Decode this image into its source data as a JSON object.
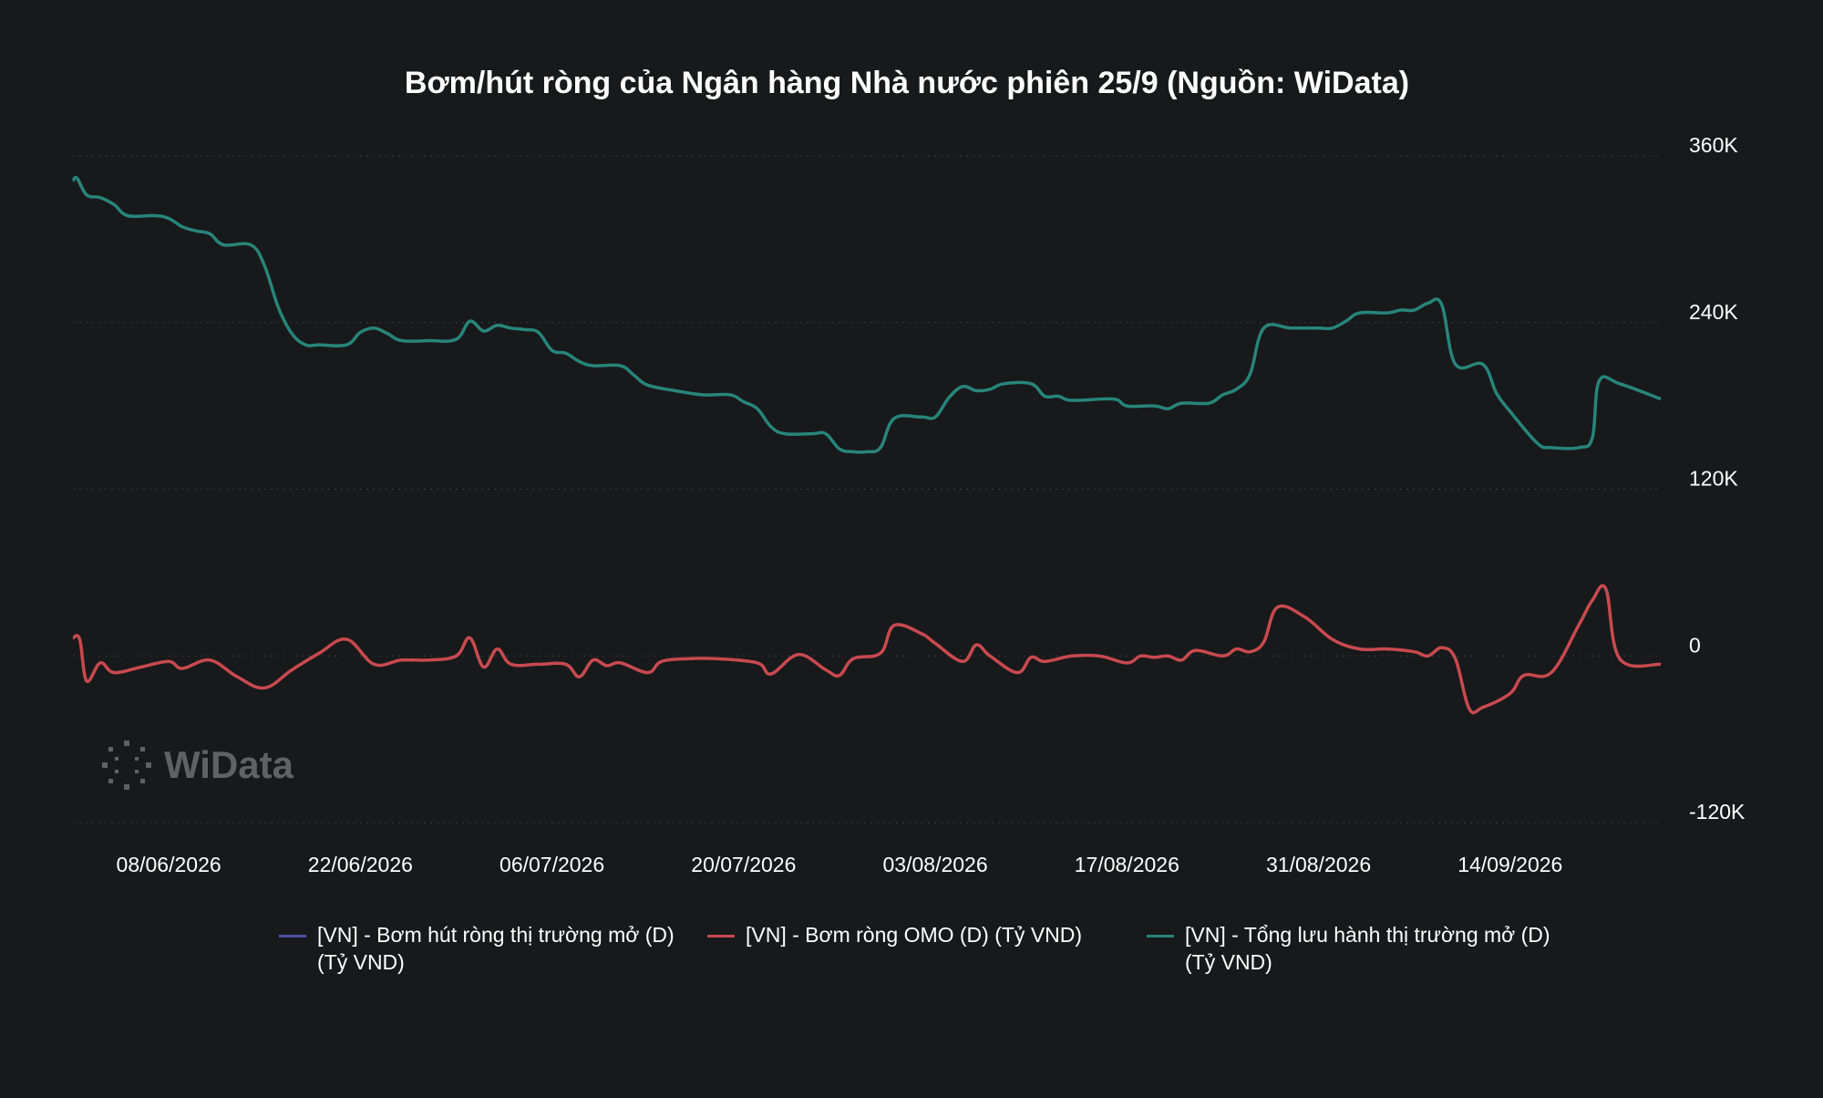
{
  "chart_data": {
    "type": "line",
    "title": "Bơm/hút ròng của Ngân hàng Nhà nước phiên 25/9 (Nguồn: WiData)",
    "x_ticks": [
      "08/06/2026",
      "22/06/2026",
      "06/07/2026",
      "20/07/2026",
      "03/08/2026",
      "17/08/2026",
      "31/08/2026",
      "14/09/2026"
    ],
    "y_ticks": [
      "360K",
      "240K",
      "120K",
      "0",
      "-120K"
    ],
    "y_tick_values": [
      360000,
      240000,
      120000,
      0,
      -120000
    ],
    "ylim": [
      -120000,
      360000
    ],
    "xlim_days": [
      0,
      116
    ],
    "x_tick_days": [
      7,
      21,
      35,
      49,
      63,
      77,
      91,
      105
    ],
    "grid": true,
    "legend_position": "bottom",
    "series": [
      {
        "name": "[VN] - Bơm hút ròng thị trường mở (D) (Tỷ VND)",
        "color": "#4c4ea3",
        "values": []
      },
      {
        "name": "[VN] - Bơm ròng OMO (D) (Tỷ VND)",
        "color": "#c84a4f",
        "points": [
          [
            0,
            13000
          ],
          [
            0.5,
            12000
          ],
          [
            1,
            -18000
          ],
          [
            2,
            -5000
          ],
          [
            3,
            -12000
          ],
          [
            5,
            -8000
          ],
          [
            7,
            -4000
          ],
          [
            8,
            -9000
          ],
          [
            10,
            -3000
          ],
          [
            12,
            -15000
          ],
          [
            14,
            -23000
          ],
          [
            16,
            -10000
          ],
          [
            18,
            2000
          ],
          [
            20,
            12000
          ],
          [
            22,
            -6000
          ],
          [
            24,
            -3000
          ],
          [
            26,
            -3000
          ],
          [
            28,
            0
          ],
          [
            29,
            13000
          ],
          [
            30,
            -8000
          ],
          [
            31,
            5000
          ],
          [
            32,
            -6000
          ],
          [
            34,
            -6000
          ],
          [
            36,
            -6000
          ],
          [
            37,
            -15000
          ],
          [
            38,
            -3000
          ],
          [
            39,
            -7000
          ],
          [
            40,
            -5000
          ],
          [
            42,
            -12000
          ],
          [
            43,
            -4000
          ],
          [
            45,
            -2000
          ],
          [
            47,
            -2000
          ],
          [
            50,
            -5000
          ],
          [
            51,
            -13000
          ],
          [
            53,
            1000
          ],
          [
            55,
            -10000
          ],
          [
            56,
            -14000
          ],
          [
            57,
            -2000
          ],
          [
            59,
            2000
          ],
          [
            60,
            22000
          ],
          [
            62,
            16000
          ],
          [
            63,
            9000
          ],
          [
            65,
            -4000
          ],
          [
            66,
            8000
          ],
          [
            67,
            0
          ],
          [
            69,
            -12000
          ],
          [
            70,
            -1000
          ],
          [
            71,
            -4000
          ],
          [
            73,
            0
          ],
          [
            75,
            0
          ],
          [
            77,
            -5000
          ],
          [
            78,
            0
          ],
          [
            79,
            -1000
          ],
          [
            80,
            0
          ],
          [
            81,
            -3000
          ],
          [
            82,
            4000
          ],
          [
            84,
            0
          ],
          [
            85,
            5000
          ],
          [
            86,
            3000
          ],
          [
            87,
            10000
          ],
          [
            88,
            35000
          ],
          [
            90,
            28000
          ],
          [
            92,
            12000
          ],
          [
            94,
            5000
          ],
          [
            96,
            5000
          ],
          [
            98,
            3000
          ],
          [
            99,
            0
          ],
          [
            100,
            6000
          ],
          [
            101,
            -2000
          ],
          [
            102,
            -38000
          ],
          [
            103,
            -37000
          ],
          [
            105,
            -27000
          ],
          [
            106,
            -14000
          ],
          [
            108,
            -12000
          ],
          [
            110,
            22000
          ],
          [
            111,
            40000
          ],
          [
            112,
            48000
          ],
          [
            113,
            -2000
          ],
          [
            116,
            -6000
          ]
        ]
      },
      {
        "name": "[VN] - Tổng lưu hành thị trường mở (D) (Tỷ VND)",
        "color": "#27857a",
        "points": [
          [
            0,
            342000
          ],
          [
            0.3,
            344000
          ],
          [
            1,
            332000
          ],
          [
            2,
            330000
          ],
          [
            3,
            325000
          ],
          [
            4,
            317000
          ],
          [
            6,
            317000
          ],
          [
            7,
            315000
          ],
          [
            8,
            309000
          ],
          [
            9,
            306000
          ],
          [
            10,
            304000
          ],
          [
            11,
            296000
          ],
          [
            13,
            296000
          ],
          [
            14,
            281000
          ],
          [
            15,
            251000
          ],
          [
            16,
            232000
          ],
          [
            17,
            224000
          ],
          [
            18,
            224000
          ],
          [
            20,
            224000
          ],
          [
            21,
            233000
          ],
          [
            22,
            236000
          ],
          [
            23,
            232000
          ],
          [
            24,
            227000
          ],
          [
            26,
            227000
          ],
          [
            28,
            228000
          ],
          [
            29,
            241000
          ],
          [
            30,
            234000
          ],
          [
            31,
            238000
          ],
          [
            32,
            236000
          ],
          [
            33,
            235000
          ],
          [
            34,
            233000
          ],
          [
            35,
            220000
          ],
          [
            36,
            218000
          ],
          [
            37,
            212000
          ],
          [
            38,
            209000
          ],
          [
            40,
            209000
          ],
          [
            41,
            202000
          ],
          [
            42,
            195000
          ],
          [
            44,
            191000
          ],
          [
            46,
            188000
          ],
          [
            48,
            188000
          ],
          [
            49,
            183000
          ],
          [
            50,
            178000
          ],
          [
            51,
            165000
          ],
          [
            52,
            160000
          ],
          [
            54,
            160000
          ],
          [
            55,
            160000
          ],
          [
            56,
            149000
          ],
          [
            57,
            147000
          ],
          [
            58,
            147000
          ],
          [
            59,
            150000
          ],
          [
            60,
            171000
          ],
          [
            62,
            172000
          ],
          [
            63,
            172000
          ],
          [
            64,
            186000
          ],
          [
            65,
            194000
          ],
          [
            66,
            191000
          ],
          [
            67,
            192000
          ],
          [
            68,
            196000
          ],
          [
            70,
            196000
          ],
          [
            71,
            187000
          ],
          [
            72,
            187000
          ],
          [
            73,
            184000
          ],
          [
            76,
            185000
          ],
          [
            77,
            180000
          ],
          [
            79,
            180000
          ],
          [
            80,
            178000
          ],
          [
            81,
            182000
          ],
          [
            83,
            182000
          ],
          [
            84,
            188000
          ],
          [
            85,
            192000
          ],
          [
            86,
            203000
          ],
          [
            87,
            236000
          ],
          [
            89,
            236000
          ],
          [
            91,
            236000
          ],
          [
            92,
            236000
          ],
          [
            93,
            241000
          ],
          [
            94,
            247000
          ],
          [
            96,
            247000
          ],
          [
            97,
            249000
          ],
          [
            98,
            249000
          ],
          [
            99,
            254000
          ],
          [
            100,
            253000
          ],
          [
            101,
            210000
          ],
          [
            103,
            210000
          ],
          [
            104,
            189000
          ],
          [
            105,
            176000
          ],
          [
            107,
            153000
          ],
          [
            108,
            150000
          ],
          [
            110,
            150000
          ],
          [
            111,
            157000
          ],
          [
            111.5,
            198000
          ],
          [
            113,
            196000
          ],
          [
            116,
            185000
          ]
        ]
      }
    ]
  },
  "watermark": {
    "text": "WiData",
    "icon": "dotted-circle-logo-icon"
  }
}
